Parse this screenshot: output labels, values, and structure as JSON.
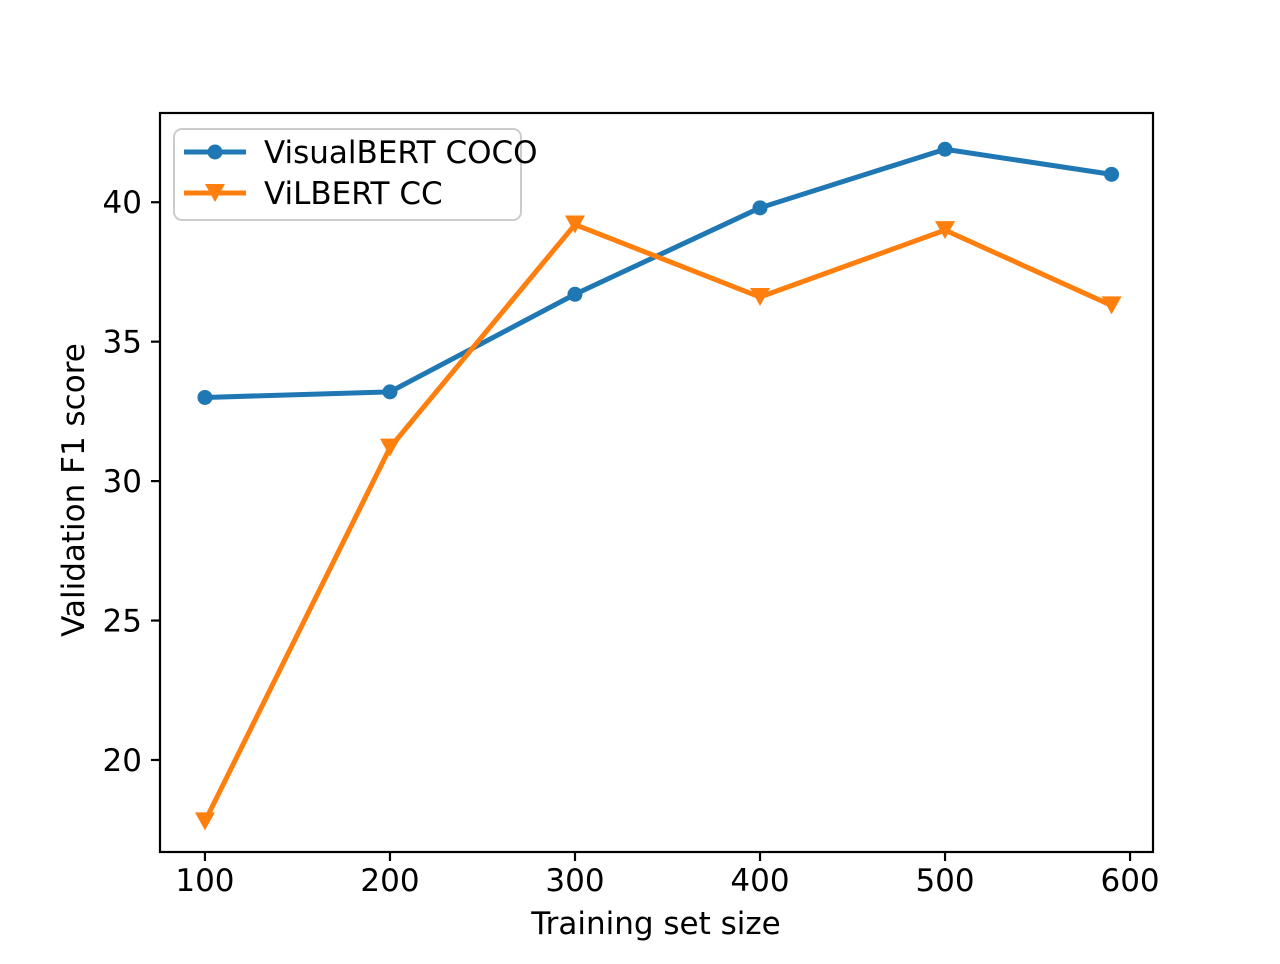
{
  "figure": {
    "background": "#ffffff"
  },
  "chart_data": {
    "type": "line",
    "title": "",
    "xlabel": "Training set size",
    "ylabel": "Validation F1 score",
    "x": [
      100,
      200,
      300,
      400,
      500,
      590
    ],
    "series": [
      {
        "name": "VisualBERT COCO",
        "color": "#1f77b4",
        "marker": "circle",
        "values": [
          33.0,
          33.2,
          36.7,
          39.8,
          41.9,
          41.0
        ]
      },
      {
        "name": "ViLBERT CC",
        "color": "#ff7f0e",
        "marker": "triangle-down",
        "values": [
          17.8,
          31.2,
          39.2,
          36.6,
          39.0,
          36.3
        ]
      }
    ],
    "xticks": [
      100,
      200,
      300,
      400,
      500,
      600
    ],
    "yticks": [
      20,
      25,
      30,
      35,
      40
    ],
    "xlim": [
      75.7,
      612.4
    ],
    "ylim": [
      16.7,
      43.2
    ],
    "grid": false,
    "legend_position": "upper left",
    "legend_border_color": "#cccccc",
    "axis_color": "#000000"
  }
}
